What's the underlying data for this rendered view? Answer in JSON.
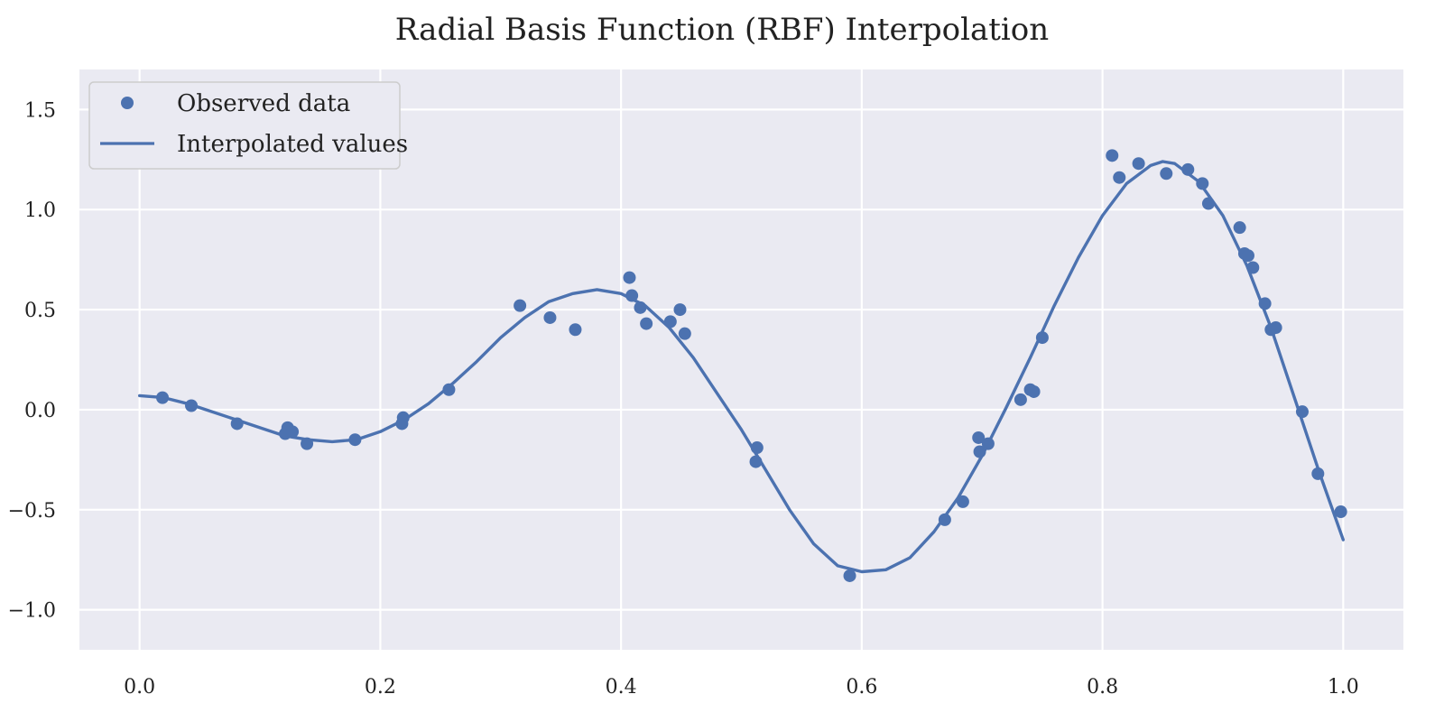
{
  "chart_data": {
    "type": "scatter",
    "title": "Radial Basis Function (RBF) Interpolation",
    "xlabel": "",
    "ylabel": "",
    "xlim": [
      -0.05,
      1.05
    ],
    "ylim": [
      -1.2,
      1.7
    ],
    "x_ticks": [
      0.0,
      0.2,
      0.4,
      0.6,
      0.8,
      1.0
    ],
    "x_tick_labels": [
      "0.0",
      "0.2",
      "0.4",
      "0.6",
      "0.8",
      "1.0"
    ],
    "y_ticks": [
      -1.0,
      -0.5,
      0.0,
      0.5,
      1.0,
      1.5
    ],
    "y_tick_labels": [
      "−1.0",
      "−0.5",
      "0.0",
      "0.5",
      "1.0",
      "1.5"
    ],
    "grid": true,
    "legend": {
      "position": "top-left"
    },
    "colors": {
      "background": "#EAEAF2",
      "grid": "#FFFFFF",
      "series": "#4C72B0"
    },
    "series": [
      {
        "name": "Observed data",
        "kind": "scatter",
        "x": [
          0.019,
          0.043,
          0.081,
          0.121,
          0.123,
          0.127,
          0.139,
          0.179,
          0.218,
          0.219,
          0.257,
          0.316,
          0.341,
          0.362,
          0.407,
          0.409,
          0.416,
          0.421,
          0.441,
          0.449,
          0.453,
          0.512,
          0.513,
          0.59,
          0.669,
          0.684,
          0.697,
          0.698,
          0.705,
          0.732,
          0.74,
          0.743,
          0.75,
          0.808,
          0.814,
          0.83,
          0.853,
          0.871,
          0.883,
          0.888,
          0.914,
          0.918,
          0.921,
          0.925,
          0.935,
          0.94,
          0.944,
          0.966,
          0.979,
          0.998
        ],
        "y": [
          0.06,
          0.02,
          -0.07,
          -0.12,
          -0.09,
          -0.11,
          -0.17,
          -0.15,
          -0.07,
          -0.04,
          0.1,
          0.52,
          0.46,
          0.4,
          0.66,
          0.57,
          0.51,
          0.43,
          0.44,
          0.5,
          0.38,
          -0.26,
          -0.19,
          -0.83,
          -0.55,
          -0.46,
          -0.14,
          -0.21,
          -0.17,
          0.05,
          0.1,
          0.09,
          0.36,
          1.27,
          1.16,
          1.23,
          1.18,
          1.2,
          1.13,
          1.03,
          0.91,
          0.78,
          0.77,
          0.71,
          0.53,
          0.4,
          0.41,
          -0.01,
          -0.32,
          -0.51
        ]
      },
      {
        "name": "Interpolated values",
        "kind": "line",
        "x": [
          0.0,
          0.02,
          0.04,
          0.06,
          0.08,
          0.1,
          0.12,
          0.14,
          0.16,
          0.18,
          0.2,
          0.22,
          0.24,
          0.26,
          0.28,
          0.3,
          0.32,
          0.34,
          0.36,
          0.38,
          0.4,
          0.42,
          0.44,
          0.46,
          0.48,
          0.5,
          0.52,
          0.54,
          0.56,
          0.58,
          0.6,
          0.62,
          0.64,
          0.66,
          0.68,
          0.7,
          0.72,
          0.74,
          0.76,
          0.78,
          0.8,
          0.82,
          0.84,
          0.85,
          0.86,
          0.88,
          0.9,
          0.92,
          0.94,
          0.96,
          0.98,
          1.0
        ],
        "y": [
          0.07,
          0.06,
          0.03,
          -0.01,
          -0.05,
          -0.09,
          -0.13,
          -0.15,
          -0.16,
          -0.15,
          -0.11,
          -0.05,
          0.03,
          0.13,
          0.24,
          0.36,
          0.46,
          0.54,
          0.58,
          0.6,
          0.58,
          0.52,
          0.41,
          0.26,
          0.08,
          -0.1,
          -0.3,
          -0.5,
          -0.67,
          -0.78,
          -0.81,
          -0.8,
          -0.74,
          -0.61,
          -0.44,
          -0.23,
          0.01,
          0.26,
          0.52,
          0.76,
          0.97,
          1.13,
          1.22,
          1.24,
          1.23,
          1.14,
          0.97,
          0.72,
          0.41,
          0.05,
          -0.31,
          -0.65
        ]
      }
    ]
  }
}
